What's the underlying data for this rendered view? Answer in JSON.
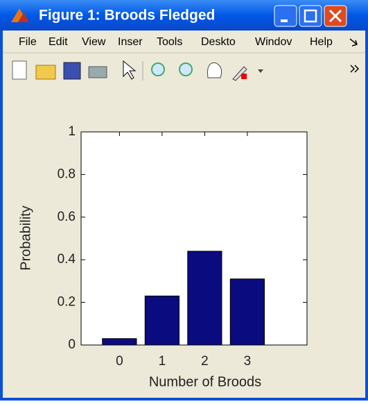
{
  "window": {
    "title": "Figure 1: Broods Fledged",
    "menu": [
      "File",
      "Edit",
      "View",
      "Inser",
      "Tools",
      "Deskto",
      "Windov",
      "Help"
    ]
  },
  "chart_data": {
    "type": "bar",
    "categories": [
      "0",
      "1",
      "2",
      "3"
    ],
    "values": [
      0.03,
      0.23,
      0.44,
      0.31
    ],
    "color": "#0b0b80",
    "xlabel": "Number of Broods",
    "ylabel": "Probability",
    "xlim": [
      -0.9,
      4.4
    ],
    "xticks": [
      0,
      1,
      2,
      3
    ],
    "ylim": [
      0,
      1
    ],
    "yticks": [
      0,
      0.2,
      0.4,
      0.6,
      0.8,
      1
    ]
  }
}
